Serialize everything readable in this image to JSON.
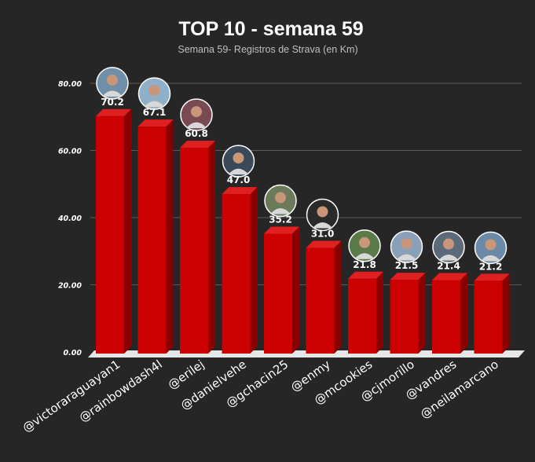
{
  "chart_data": {
    "type": "bar",
    "title": "TOP 10 - semana 59",
    "subtitle": "Semana 59- Registros de Strava (en Km)",
    "xlabel": "",
    "ylabel": "",
    "ylim": [
      0,
      80
    ],
    "yticks": [
      "0.00",
      "20.00",
      "40.00",
      "60.00",
      "80.00"
    ],
    "grid": true,
    "categories": [
      "@victoraraguayan1",
      "@rainbowdash4l",
      "@erilej",
      "@danielvehe",
      "@gchacin25",
      "@enmy",
      "@mcookies",
      "@cjmorillo",
      "@vandres",
      "@neilamarcano"
    ],
    "values": [
      70.2,
      67.1,
      60.8,
      47.0,
      35.2,
      31.0,
      21.8,
      21.5,
      21.4,
      21.2
    ],
    "value_labels": [
      "70.2",
      "67.1",
      "60.8",
      "47.0",
      "35.2",
      "31.0",
      "21.8",
      "21.5",
      "21.4",
      "21.2"
    ],
    "bar_color": "#cc0000",
    "bar_side_color": "#8a0000",
    "bar_top_color": "#e02020",
    "floor_color": "#e6e6e6",
    "avatar_icons": [
      "avatar-icon",
      "avatar-icon",
      "avatar-icon",
      "avatar-icon",
      "avatar-icon",
      "avatar-icon",
      "avatar-icon",
      "avatar-icon",
      "avatar-icon",
      "avatar-icon"
    ]
  }
}
